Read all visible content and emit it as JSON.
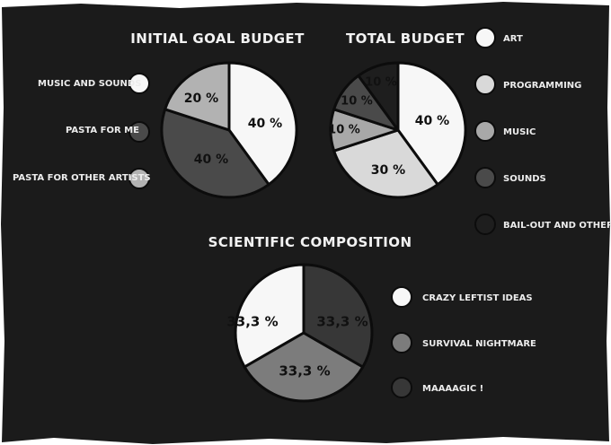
{
  "chart_data": [
    {
      "type": "pie",
      "title": "INITIAL GOAL BUDGET",
      "legend_position": "left",
      "series": [
        {
          "name": "MUSIC AND SOUNDS",
          "value": 40,
          "label": "40 %",
          "color": "#f7f7f7"
        },
        {
          "name": "PASTA FOR ME",
          "value": 40,
          "label": "40 %",
          "color": "#4a4a4a"
        },
        {
          "name": "PASTA FOR OTHER ARTISTS",
          "value": 20,
          "label": "20 %",
          "color": "#b2b2b2"
        }
      ]
    },
    {
      "type": "pie",
      "title": "TOTAL BUDGET",
      "legend_position": "right",
      "series": [
        {
          "name": "ART",
          "value": 40,
          "label": "40 %",
          "color": "#f7f7f7"
        },
        {
          "name": "PROGRAMMING",
          "value": 30,
          "label": "30 %",
          "color": "#d9d9d9"
        },
        {
          "name": "MUSIC",
          "value": 10,
          "label": "10 %",
          "color": "#a8a8a8"
        },
        {
          "name": "SOUNDS",
          "value": 10,
          "label": "10 %",
          "color": "#4a4a4a"
        },
        {
          "name": "BAIL-OUT AND OTHERS",
          "value": 10,
          "label": "10 %",
          "color": "#1e1e1e"
        }
      ]
    },
    {
      "type": "pie",
      "title": "SCIENTIFIC COMPOSITION",
      "legend_position": "right",
      "series": [
        {
          "name": "CRAZY LEFTIST IDEAS",
          "value": 33.3,
          "label": "33,3 %",
          "color": "#f7f7f7"
        },
        {
          "name": "SURVIVAL NIGHTMARE",
          "value": 33.3,
          "label": "33,3 %",
          "color": "#7c7c7c"
        },
        {
          "name": "MAAAAGIC !",
          "value": 33.3,
          "label": "33,3 %",
          "color": "#373737"
        }
      ]
    }
  ],
  "colors": {
    "background": "#1b1b1b",
    "outline": "#0c0c0c",
    "text": "#ececec"
  }
}
